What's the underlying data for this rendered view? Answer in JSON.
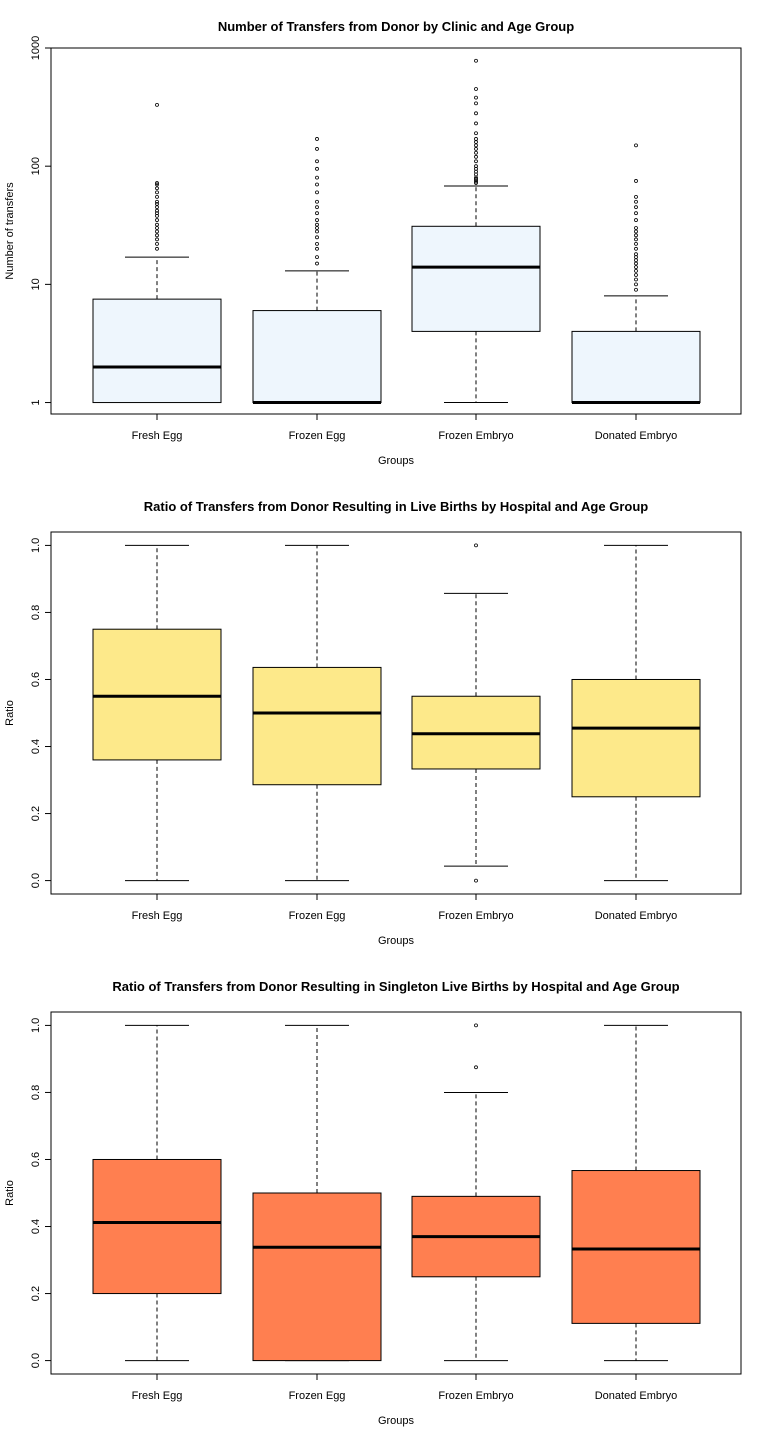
{
  "chart_data": [
    {
      "type": "boxplot",
      "title": "Number of Transfers from Donor by Clinic and Age Group",
      "xlabel": "Groups",
      "ylabel": "Number of transfers",
      "yscale": "log",
      "ylim": [
        0.8,
        1000
      ],
      "yticks": [
        1,
        10,
        100,
        1000
      ],
      "ytick_labels": [
        "1",
        "10",
        "100",
        "1000"
      ],
      "box_color": "#eef6fd",
      "categories": [
        "Fresh Egg",
        "Frozen Egg",
        "Frozen Embryo",
        "Donated Embryo"
      ],
      "boxes": [
        {
          "min": 1,
          "q1": 1,
          "median": 2,
          "q3": 7.5,
          "max": 17,
          "outliers": [
            20,
            22,
            24,
            26,
            28,
            30,
            32,
            35,
            38,
            40,
            42,
            45,
            48,
            50,
            55,
            60,
            65,
            70,
            72,
            330
          ]
        },
        {
          "min": 1,
          "q1": 1,
          "median": 1,
          "q3": 6,
          "max": 13,
          "outliers": [
            15,
            17,
            20,
            22,
            25,
            28,
            30,
            32,
            35,
            40,
            45,
            50,
            60,
            70,
            80,
            95,
            110,
            140,
            170
          ]
        },
        {
          "min": 1,
          "q1": 4,
          "median": 14,
          "q3": 31,
          "max": 68,
          "outliers": [
            72,
            74,
            76,
            78,
            80,
            85,
            90,
            95,
            100,
            110,
            120,
            130,
            140,
            150,
            160,
            170,
            190,
            230,
            280,
            340,
            380,
            450,
            780
          ]
        },
        {
          "min": 1,
          "q1": 1,
          "median": 1,
          "q3": 4,
          "max": 8,
          "outliers": [
            9,
            10,
            11,
            12,
            13,
            14,
            15,
            16,
            17,
            18,
            20,
            22,
            24,
            26,
            28,
            30,
            35,
            40,
            45,
            50,
            55,
            75,
            150
          ]
        }
      ]
    },
    {
      "type": "boxplot",
      "title": "Ratio of Transfers from Donor Resulting in Live Births by Hospital and Age Group",
      "xlabel": "Groups",
      "ylabel": "Ratio",
      "yscale": "linear",
      "ylim": [
        -0.04,
        1.04
      ],
      "yticks": [
        0.0,
        0.2,
        0.4,
        0.6,
        0.8,
        1.0
      ],
      "ytick_labels": [
        "0.0",
        "0.2",
        "0.4",
        "0.6",
        "0.8",
        "1.0"
      ],
      "box_color": "#fde98a",
      "categories": [
        "Fresh Egg",
        "Frozen Egg",
        "Frozen Embryo",
        "Donated Embryo"
      ],
      "boxes": [
        {
          "min": 0.0,
          "q1": 0.36,
          "median": 0.55,
          "q3": 0.75,
          "max": 1.0,
          "outliers": []
        },
        {
          "min": 0.0,
          "q1": 0.286,
          "median": 0.5,
          "q3": 0.636,
          "max": 1.0,
          "outliers": []
        },
        {
          "min": 0.043,
          "q1": 0.333,
          "median": 0.438,
          "q3": 0.55,
          "max": 0.857,
          "outliers": [
            0.0,
            1.0
          ]
        },
        {
          "min": 0.0,
          "q1": 0.25,
          "median": 0.455,
          "q3": 0.6,
          "max": 1.0,
          "outliers": []
        }
      ]
    },
    {
      "type": "boxplot",
      "title": "Ratio of Transfers from Donor Resulting in Singleton Live Births by Hospital and Age Group",
      "xlabel": "Groups",
      "ylabel": "Ratio",
      "yscale": "linear",
      "ylim": [
        -0.04,
        1.04
      ],
      "yticks": [
        0.0,
        0.2,
        0.4,
        0.6,
        0.8,
        1.0
      ],
      "ytick_labels": [
        "0.0",
        "0.2",
        "0.4",
        "0.6",
        "0.8",
        "1.0"
      ],
      "box_color": "#ff7f50",
      "categories": [
        "Fresh Egg",
        "Frozen Egg",
        "Frozen Embryo",
        "Donated Embryo"
      ],
      "boxes": [
        {
          "min": 0.0,
          "q1": 0.2,
          "median": 0.412,
          "q3": 0.6,
          "max": 1.0,
          "outliers": []
        },
        {
          "min": 0.0,
          "q1": 0.0,
          "median": 0.338,
          "q3": 0.5,
          "max": 1.0,
          "outliers": []
        },
        {
          "min": 0.0,
          "q1": 0.25,
          "median": 0.37,
          "q3": 0.49,
          "max": 0.8,
          "outliers": [
            0.875,
            1.0
          ]
        },
        {
          "min": 0.0,
          "q1": 0.111,
          "median": 0.333,
          "q3": 0.567,
          "max": 1.0,
          "outliers": []
        }
      ]
    }
  ]
}
